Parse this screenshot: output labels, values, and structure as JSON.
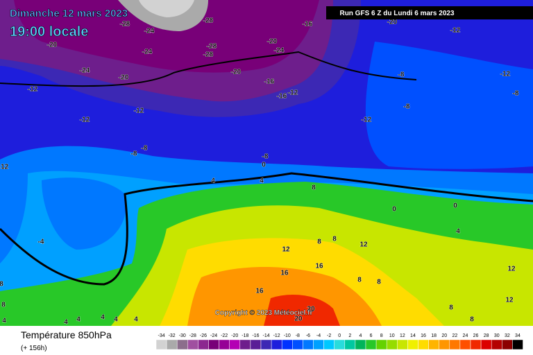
{
  "header": {
    "date": "Dimanche 12 mars 2023",
    "time": "19:00 locale",
    "run": "Run GFS 6 Z du Lundi 6 mars 2023"
  },
  "copyright": "Copyright © 2023 Météociel.fr",
  "footer": {
    "title": "Température 850hPa",
    "lead": "(+ 156h)"
  },
  "legend": {
    "ticks": [
      -34,
      -32,
      -30,
      -28,
      -26,
      -24,
      -22,
      -20,
      -18,
      -16,
      -14,
      -12,
      -10,
      -8,
      -6,
      -4,
      -2,
      0,
      2,
      4,
      6,
      8,
      10,
      12,
      14,
      16,
      18,
      20,
      22,
      24,
      26,
      28,
      30,
      32,
      34
    ],
    "colors": [
      "#d2d2d2",
      "#aaaaaa",
      "#8c6e8c",
      "#a050a0",
      "#8c2890",
      "#780078",
      "#960096",
      "#b400b4",
      "#6e1e8c",
      "#5a1e96",
      "#3c28b4",
      "#1e1edc",
      "#0032ff",
      "#0050ff",
      "#0078ff",
      "#00a0ff",
      "#00c8ff",
      "#28dcdc",
      "#00c8a0",
      "#00b45a",
      "#28c828",
      "#64d200",
      "#96dc00",
      "#c8e600",
      "#f0f000",
      "#ffdc00",
      "#ffb400",
      "#ff9600",
      "#ff7800",
      "#ff5000",
      "#f02800",
      "#dc0000",
      "#b40000",
      "#8c0000",
      "#000000"
    ]
  },
  "contour_labels": [
    -28,
    -24,
    -28,
    -28,
    -28,
    -24,
    -20,
    -24,
    -20,
    -20,
    -24,
    -20,
    -16,
    -16,
    -16,
    -12,
    -20,
    -12,
    -8,
    -12,
    -8,
    -8,
    -12,
    -12,
    -12,
    -12,
    -8,
    -8,
    -12,
    -8,
    0,
    4,
    4,
    8,
    0,
    0,
    -4,
    4,
    12,
    8,
    12,
    8,
    16,
    16,
    12,
    16,
    8,
    8,
    12,
    8,
    8,
    20,
    20,
    8,
    8,
    4,
    4,
    4,
    4,
    4,
    4
  ]
}
